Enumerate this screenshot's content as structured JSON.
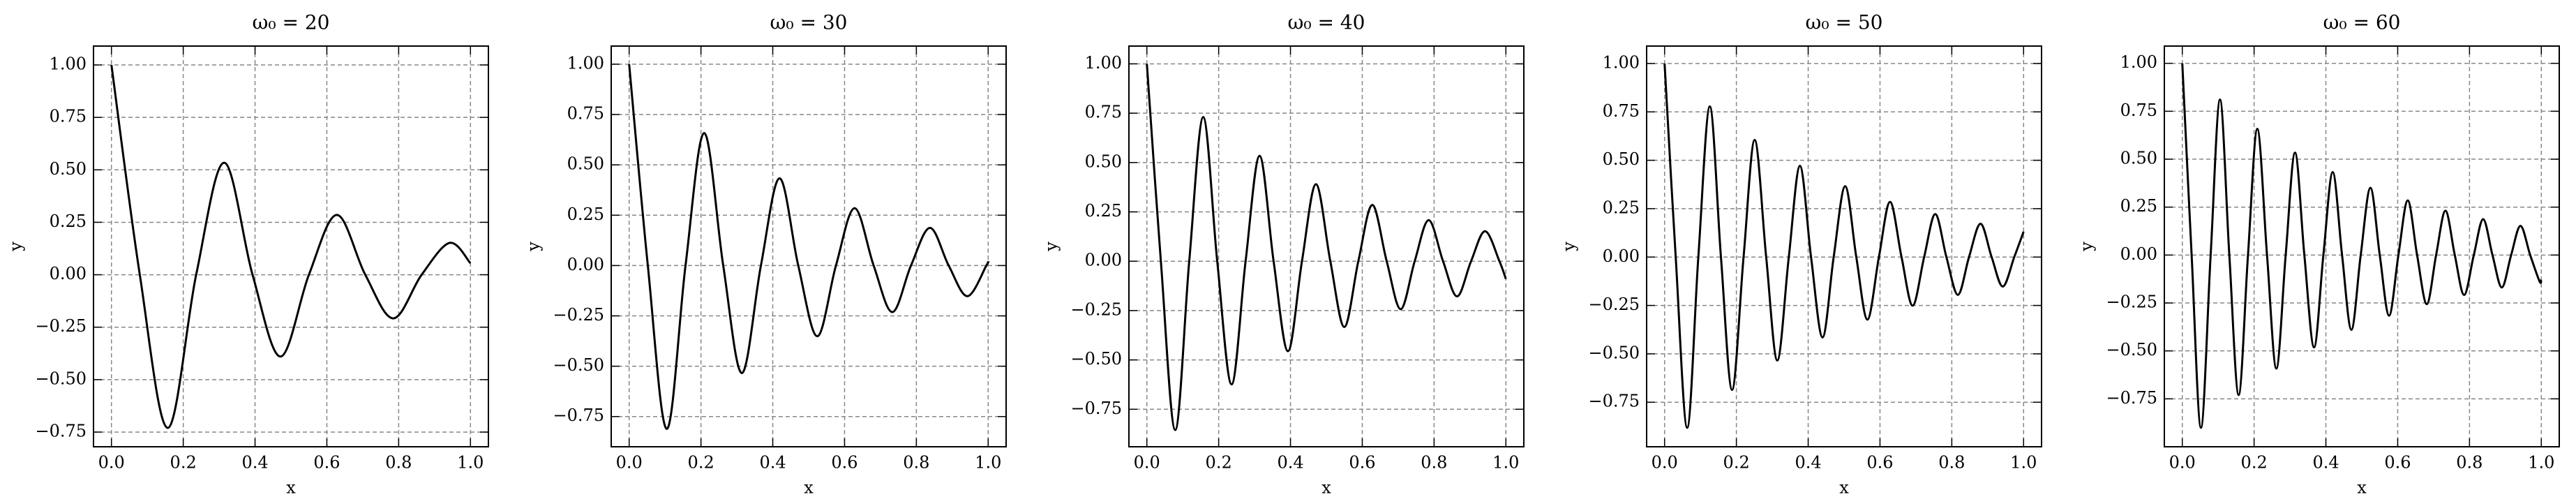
{
  "chart_data": [
    {
      "type": "line",
      "title": "ω₀ = 20",
      "xlabel": "x",
      "ylabel": "y",
      "grid": true,
      "x": [
        0,
        0.079,
        0.157,
        0.236,
        0.314,
        0.393,
        0.471,
        0.55,
        0.628,
        0.707,
        0.785,
        0.864,
        0.942,
        1
      ],
      "series": [
        {
          "color": "#000000",
          "values": [
            1,
            0,
            -0.73,
            0,
            0.534,
            0,
            -0.39,
            0,
            0.285,
            0,
            -0.208,
            0,
            0.152,
            0.055
          ]
        }
      ],
      "xlim": [
        -0.05,
        1.05
      ],
      "ylim": [
        -0.82,
        1.09
      ],
      "xticks": [
        {
          "value": 0,
          "label": "0.0"
        },
        {
          "value": 0.2,
          "label": "0.2"
        },
        {
          "value": 0.4,
          "label": "0.4"
        },
        {
          "value": 0.6,
          "label": "0.6"
        },
        {
          "value": 0.8,
          "label": "0.8"
        },
        {
          "value": 1,
          "label": "1.0"
        }
      ],
      "yticks": [
        {
          "value": -0.75,
          "label": "−0.75"
        },
        {
          "value": -0.5,
          "label": "−0.50"
        },
        {
          "value": -0.25,
          "label": "−0.25"
        },
        {
          "value": 0,
          "label": "0.00"
        },
        {
          "value": 0.25,
          "label": "0.25"
        },
        {
          "value": 0.5,
          "label": "0.50"
        },
        {
          "value": 0.75,
          "label": "0.75"
        },
        {
          "value": 1,
          "label": "1.00"
        }
      ]
    },
    {
      "type": "line",
      "title": "ω₀ = 30",
      "xlabel": "x",
      "ylabel": "y",
      "grid": true,
      "x": [
        0,
        0.052,
        0.105,
        0.157,
        0.209,
        0.262,
        0.314,
        0.367,
        0.419,
        0.471,
        0.524,
        0.576,
        0.628,
        0.681,
        0.733,
        0.785,
        0.838,
        0.89,
        0.942,
        0.995,
        1
      ],
      "series": [
        {
          "color": "#000000",
          "values": [
            1,
            0,
            -0.811,
            0,
            0.658,
            0,
            -0.534,
            0,
            0.433,
            0,
            -0.351,
            0,
            0.285,
            0,
            -0.231,
            0,
            0.187,
            0,
            -0.152,
            0,
            0.021
          ]
        }
      ],
      "xlim": [
        -0.05,
        1.05
      ],
      "ylim": [
        -0.9,
        1.09
      ],
      "xticks": [
        {
          "value": 0,
          "label": "0.0"
        },
        {
          "value": 0.2,
          "label": "0.2"
        },
        {
          "value": 0.4,
          "label": "0.4"
        },
        {
          "value": 0.6,
          "label": "0.6"
        },
        {
          "value": 0.8,
          "label": "0.8"
        },
        {
          "value": 1,
          "label": "1.0"
        }
      ],
      "yticks": [
        {
          "value": -0.75,
          "label": "−0.75"
        },
        {
          "value": -0.5,
          "label": "−0.50"
        },
        {
          "value": -0.25,
          "label": "−0.25"
        },
        {
          "value": 0,
          "label": "0.00"
        },
        {
          "value": 0.25,
          "label": "0.25"
        },
        {
          "value": 0.5,
          "label": "0.50"
        },
        {
          "value": 0.75,
          "label": "0.75"
        },
        {
          "value": 1,
          "label": "1.00"
        }
      ]
    },
    {
      "type": "line",
      "title": "ω₀ = 40",
      "xlabel": "x",
      "ylabel": "y",
      "grid": true,
      "x": [
        0,
        0.039,
        0.079,
        0.118,
        0.157,
        0.196,
        0.236,
        0.275,
        0.314,
        0.353,
        0.393,
        0.432,
        0.471,
        0.511,
        0.55,
        0.589,
        0.628,
        0.668,
        0.707,
        0.746,
        0.785,
        0.825,
        0.864,
        0.903,
        0.942,
        0.982,
        1
      ],
      "series": [
        {
          "color": "#000000",
          "values": [
            1,
            0,
            -0.855,
            0,
            0.73,
            0,
            -0.624,
            0,
            0.534,
            0,
            -0.456,
            0,
            0.39,
            0,
            -0.333,
            0,
            0.285,
            0,
            -0.243,
            0,
            0.208,
            0,
            -0.178,
            0,
            0.152,
            0,
            -0.09
          ]
        }
      ],
      "xlim": [
        -0.05,
        1.05
      ],
      "ylim": [
        -0.94,
        1.09
      ],
      "xticks": [
        {
          "value": 0,
          "label": "0.0"
        },
        {
          "value": 0.2,
          "label": "0.2"
        },
        {
          "value": 0.4,
          "label": "0.4"
        },
        {
          "value": 0.6,
          "label": "0.6"
        },
        {
          "value": 0.8,
          "label": "0.8"
        },
        {
          "value": 1,
          "label": "1.0"
        }
      ],
      "yticks": [
        {
          "value": -0.75,
          "label": "−0.75"
        },
        {
          "value": -0.5,
          "label": "−0.50"
        },
        {
          "value": -0.25,
          "label": "−0.25"
        },
        {
          "value": 0,
          "label": "0.00"
        },
        {
          "value": 0.25,
          "label": "0.25"
        },
        {
          "value": 0.5,
          "label": "0.50"
        },
        {
          "value": 0.75,
          "label": "0.75"
        },
        {
          "value": 1,
          "label": "1.00"
        }
      ]
    },
    {
      "type": "line",
      "title": "ω₀ = 50",
      "xlabel": "x",
      "ylabel": "y",
      "grid": true,
      "x": [
        0,
        0.031,
        0.063,
        0.094,
        0.126,
        0.157,
        0.188,
        0.22,
        0.251,
        0.283,
        0.314,
        0.346,
        0.377,
        0.408,
        0.44,
        0.471,
        0.503,
        0.534,
        0.565,
        0.597,
        0.628,
        0.66,
        0.691,
        0.723,
        0.754,
        0.785,
        0.817,
        0.848,
        0.88,
        0.911,
        0.942,
        0.974,
        1
      ],
      "series": [
        {
          "color": "#000000",
          "values": [
            1,
            0,
            -0.882,
            0,
            0.778,
            0,
            -0.686,
            0,
            0.605,
            0,
            -0.534,
            0,
            0.471,
            0,
            -0.415,
            0,
            0.366,
            0,
            -0.323,
            0,
            0.285,
            0,
            -0.251,
            0,
            0.222,
            0,
            -0.195,
            0,
            0.172,
            0,
            -0.152,
            0,
            0.131
          ]
        }
      ],
      "xlim": [
        -0.05,
        1.05
      ],
      "ylim": [
        -0.98,
        1.09
      ],
      "xticks": [
        {
          "value": 0,
          "label": "0.0"
        },
        {
          "value": 0.2,
          "label": "0.2"
        },
        {
          "value": 0.4,
          "label": "0.4"
        },
        {
          "value": 0.6,
          "label": "0.6"
        },
        {
          "value": 0.8,
          "label": "0.8"
        },
        {
          "value": 1,
          "label": "1.0"
        }
      ],
      "yticks": [
        {
          "value": -0.75,
          "label": "−0.75"
        },
        {
          "value": -0.5,
          "label": "−0.50"
        },
        {
          "value": -0.25,
          "label": "−0.25"
        },
        {
          "value": 0,
          "label": "0.00"
        },
        {
          "value": 0.25,
          "label": "0.25"
        },
        {
          "value": 0.5,
          "label": "0.50"
        },
        {
          "value": 0.75,
          "label": "0.75"
        },
        {
          "value": 1,
          "label": "1.00"
        }
      ]
    },
    {
      "type": "line",
      "title": "ω₀ = 60",
      "xlabel": "x",
      "ylabel": "y",
      "grid": true,
      "x": [
        0,
        0.026,
        0.052,
        0.079,
        0.105,
        0.131,
        0.157,
        0.183,
        0.209,
        0.236,
        0.262,
        0.288,
        0.314,
        0.34,
        0.367,
        0.393,
        0.419,
        0.445,
        0.471,
        0.497,
        0.524,
        0.55,
        0.576,
        0.602,
        0.628,
        0.654,
        0.681,
        0.707,
        0.733,
        0.759,
        0.785,
        0.812,
        0.838,
        0.864,
        0.89,
        0.916,
        0.942,
        0.969,
        0.995,
        1
      ],
      "series": [
        {
          "color": "#000000",
          "values": [
            1,
            0,
            -0.901,
            0,
            0.811,
            0,
            -0.73,
            0,
            0.658,
            0,
            -0.592,
            0,
            0.534,
            0,
            -0.481,
            0,
            0.433,
            0,
            -0.39,
            0,
            0.351,
            0,
            -0.316,
            0,
            0.285,
            0,
            -0.256,
            0,
            0.231,
            0,
            -0.208,
            0,
            0.187,
            0,
            -0.169,
            0,
            0.152,
            0,
            -0.137,
            -0.129
          ]
        }
      ],
      "xlim": [
        -0.05,
        1.05
      ],
      "ylim": [
        -1.0,
        1.09
      ],
      "xticks": [
        {
          "value": 0,
          "label": "0.0"
        },
        {
          "value": 0.2,
          "label": "0.2"
        },
        {
          "value": 0.4,
          "label": "0.4"
        },
        {
          "value": 0.6,
          "label": "0.6"
        },
        {
          "value": 0.8,
          "label": "0.8"
        },
        {
          "value": 1,
          "label": "1.0"
        }
      ],
      "yticks": [
        {
          "value": -0.75,
          "label": "−0.75"
        },
        {
          "value": -0.5,
          "label": "−0.50"
        },
        {
          "value": -0.25,
          "label": "−0.25"
        },
        {
          "value": 0,
          "label": "0.00"
        },
        {
          "value": 0.25,
          "label": "0.25"
        },
        {
          "value": 0.5,
          "label": "0.50"
        },
        {
          "value": 0.75,
          "label": "0.75"
        },
        {
          "value": 1,
          "label": "1.00"
        }
      ]
    }
  ]
}
